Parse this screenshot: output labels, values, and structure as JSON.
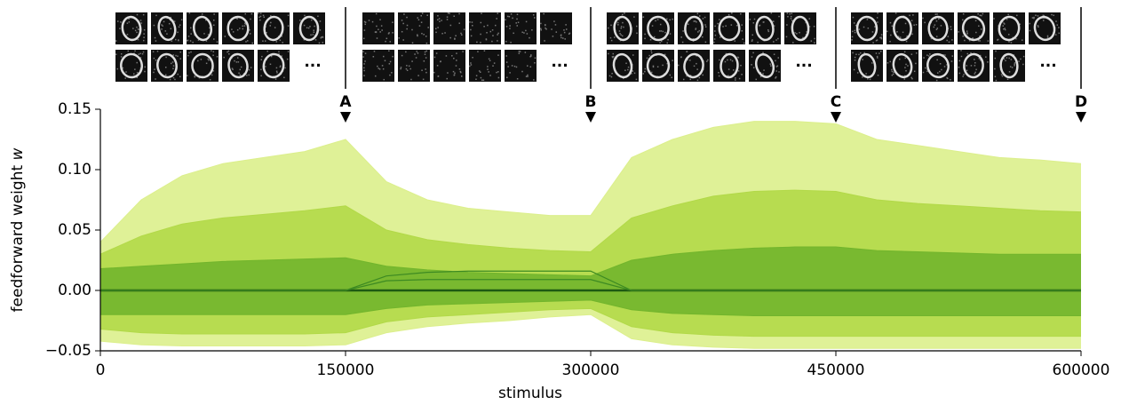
{
  "chart_data": {
    "type": "band",
    "ylabel": "feedforward weight",
    "ylabel_var": "w",
    "xlabel": "stimulus",
    "xlim": [
      0,
      600000
    ],
    "xticks": [
      0,
      150000,
      300000,
      450000,
      600000
    ],
    "ylim": [
      -0.05,
      0.15
    ],
    "yticks": [
      {
        "value": -0.05,
        "label": "−0.05"
      },
      {
        "value": 0,
        "label": "0.00"
      },
      0.05,
      {
        "value": 0.1,
        "label": "0.10"
      },
      0.15
    ],
    "x": [
      0,
      25000,
      50000,
      75000,
      100000,
      125000,
      150000,
      175000,
      200000,
      225000,
      250000,
      275000,
      300000,
      325000,
      350000,
      375000,
      400000,
      425000,
      450000,
      475000,
      500000,
      525000,
      550000,
      575000,
      600000
    ],
    "bands": [
      {
        "color": "#dcef8c",
        "upper": [
          0.04,
          0.075,
          0.095,
          0.105,
          0.11,
          0.115,
          0.125,
          0.09,
          0.075,
          0.068,
          0.065,
          0.062,
          0.062,
          0.11,
          0.125,
          0.135,
          0.14,
          0.14,
          0.138,
          0.125,
          0.12,
          0.115,
          0.11,
          0.108,
          0.105
        ],
        "lower": [
          -0.042,
          -0.045,
          -0.046,
          -0.046,
          -0.046,
          -0.046,
          -0.045,
          -0.035,
          -0.03,
          -0.027,
          -0.025,
          -0.022,
          -0.02,
          -0.04,
          -0.045,
          -0.047,
          -0.048,
          -0.048,
          -0.048,
          -0.048,
          -0.048,
          -0.048,
          -0.048,
          -0.048,
          -0.048
        ]
      },
      {
        "color": "#b2d948",
        "upper": [
          0.03,
          0.045,
          0.055,
          0.06,
          0.063,
          0.066,
          0.07,
          0.05,
          0.042,
          0.038,
          0.035,
          0.033,
          0.032,
          0.06,
          0.07,
          0.078,
          0.082,
          0.083,
          0.082,
          0.075,
          0.072,
          0.07,
          0.068,
          0.066,
          0.065
        ],
        "lower": [
          -0.032,
          -0.035,
          -0.036,
          -0.036,
          -0.036,
          -0.036,
          -0.035,
          -0.026,
          -0.022,
          -0.02,
          -0.018,
          -0.016,
          -0.015,
          -0.03,
          -0.035,
          -0.037,
          -0.038,
          -0.038,
          -0.038,
          -0.038,
          -0.038,
          -0.038,
          -0.038,
          -0.038,
          -0.038
        ]
      },
      {
        "color": "#72b52c",
        "upper": [
          0.018,
          0.02,
          0.022,
          0.024,
          0.025,
          0.026,
          0.027,
          0.02,
          0.017,
          0.015,
          0.014,
          0.013,
          0.012,
          0.025,
          0.03,
          0.033,
          0.035,
          0.036,
          0.036,
          0.033,
          0.032,
          0.031,
          0.03,
          0.03,
          0.03
        ],
        "lower": [
          -0.02,
          -0.02,
          -0.02,
          -0.02,
          -0.02,
          -0.02,
          -0.02,
          -0.015,
          -0.012,
          -0.011,
          -0.01,
          -0.009,
          -0.008,
          -0.016,
          -0.019,
          -0.02,
          -0.021,
          -0.021,
          -0.021,
          -0.021,
          -0.021,
          -0.021,
          -0.021,
          -0.021,
          -0.021
        ]
      }
    ],
    "lines": [
      {
        "color": "#1d5a12",
        "values": [
          0,
          0,
          0,
          0,
          0,
          0,
          0,
          0,
          0,
          0,
          0,
          0,
          0,
          0,
          0,
          0,
          0,
          0,
          0,
          0,
          0,
          0,
          0,
          0,
          0
        ]
      },
      {
        "color": "#3d8a22",
        "values": [
          0,
          0,
          0,
          0,
          0,
          0,
          0,
          0.012,
          0.015,
          0.016,
          0.016,
          0.016,
          0.016,
          0,
          0,
          0,
          0,
          0,
          0,
          0,
          0,
          0,
          0,
          0,
          0
        ]
      },
      {
        "color": "#3d8a22",
        "values": [
          0,
          0,
          0,
          0,
          0,
          0,
          0,
          0.008,
          0.009,
          0.009,
          0.009,
          0.009,
          0.009,
          0,
          0,
          0,
          0,
          0,
          0,
          0,
          0,
          0,
          0,
          0,
          0
        ]
      }
    ],
    "markers": [
      {
        "label": "A",
        "x": 150000
      },
      {
        "label": "B",
        "x": 300000
      },
      {
        "label": "C",
        "x": 450000
      },
      {
        "label": "D",
        "x": 600000
      }
    ],
    "ellipsis": "..."
  }
}
